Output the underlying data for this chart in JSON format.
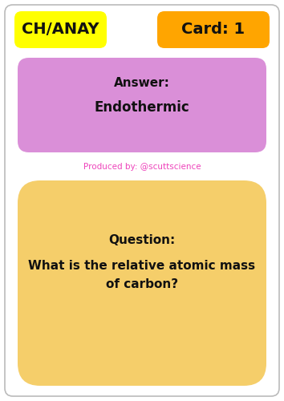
{
  "card_label": "CH/ANAY",
  "card_number": "Card: 1",
  "card_label_color": "#FFFF00",
  "card_number_color": "#FFA500",
  "answer_label": "Answer:",
  "answer_text": "Endothermic",
  "answer_box_color": "#DA8FD8",
  "question_label": "Question:",
  "question_text": "What is the relative atomic mass\nof carbon?",
  "question_box_color": "#F5CE6A",
  "credit_text": "Produced by: @scuttscience",
  "credit_color": "#EE44BB",
  "bg_color": "#FFFFFF",
  "border_color": "#BBBBBB",
  "text_color": "#111111",
  "fig_width": 3.54,
  "fig_height": 5.0,
  "dpi": 100
}
